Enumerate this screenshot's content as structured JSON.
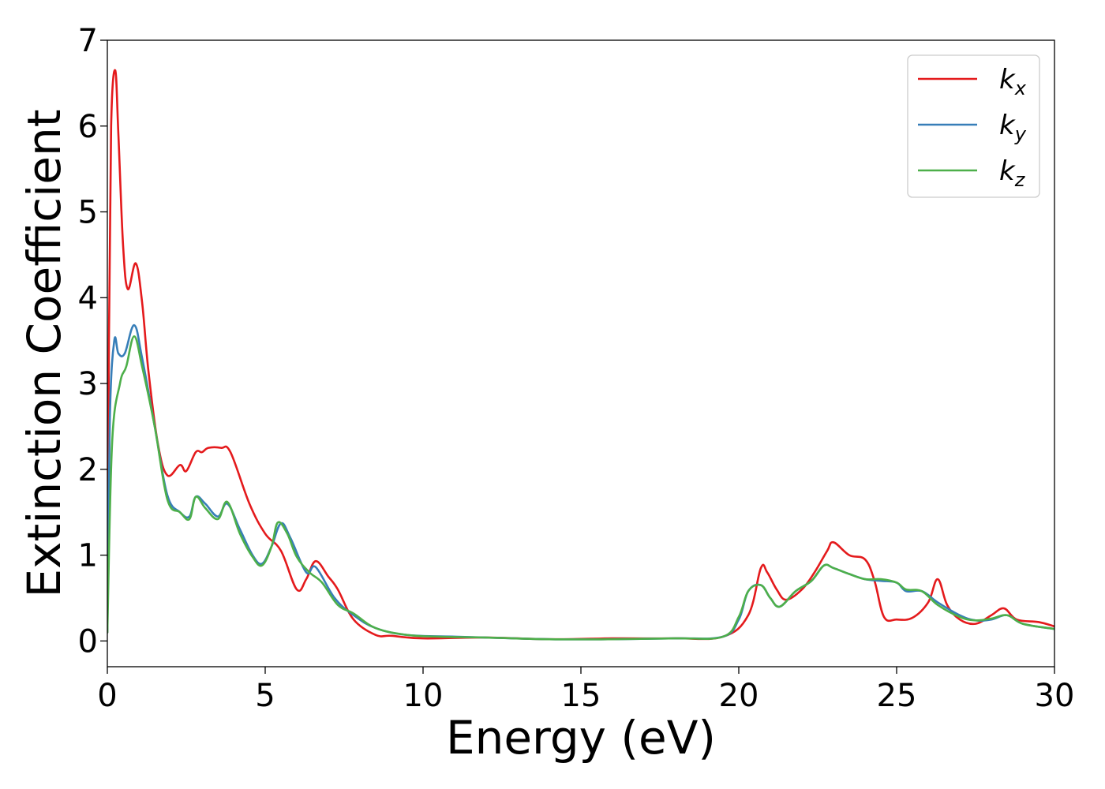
{
  "chart_data": {
    "type": "line",
    "title": "",
    "xlabel": "Energy (eV)",
    "ylabel": "Extinction Coefficient",
    "xlim": [
      0,
      30
    ],
    "ylim": [
      -0.3,
      7
    ],
    "xticks": [
      0,
      5,
      10,
      15,
      20,
      25,
      30
    ],
    "yticks": [
      0,
      1,
      2,
      3,
      4,
      5,
      6,
      7
    ],
    "grid": false,
    "legend_position": "top-right",
    "series": [
      {
        "name": "k_x",
        "legend_base": "k",
        "legend_sub": "x",
        "color": "#e41a1c",
        "points": [
          [
            0,
            0.1
          ],
          [
            0.05,
            3.5
          ],
          [
            0.12,
            6.0
          ],
          [
            0.25,
            6.65
          ],
          [
            0.35,
            5.9
          ],
          [
            0.5,
            4.6
          ],
          [
            0.65,
            4.1
          ],
          [
            0.9,
            4.4
          ],
          [
            1.1,
            3.95
          ],
          [
            1.3,
            3.15
          ],
          [
            1.6,
            2.3
          ],
          [
            1.9,
            1.93
          ],
          [
            2.3,
            2.05
          ],
          [
            2.5,
            1.98
          ],
          [
            2.8,
            2.2
          ],
          [
            3.0,
            2.2
          ],
          [
            3.2,
            2.25
          ],
          [
            3.6,
            2.25
          ],
          [
            3.9,
            2.2
          ],
          [
            4.5,
            1.6
          ],
          [
            5.0,
            1.25
          ],
          [
            5.5,
            1.05
          ],
          [
            6.0,
            0.6
          ],
          [
            6.3,
            0.72
          ],
          [
            6.6,
            0.93
          ],
          [
            7.0,
            0.75
          ],
          [
            7.3,
            0.6
          ],
          [
            7.8,
            0.25
          ],
          [
            8.5,
            0.07
          ],
          [
            9.0,
            0.06
          ],
          [
            10,
            0.03
          ],
          [
            12,
            0.04
          ],
          [
            14,
            0.02
          ],
          [
            16,
            0.03
          ],
          [
            18,
            0.03
          ],
          [
            19.5,
            0.05
          ],
          [
            20.3,
            0.3
          ],
          [
            20.7,
            0.85
          ],
          [
            20.9,
            0.8
          ],
          [
            21.2,
            0.6
          ],
          [
            21.5,
            0.48
          ],
          [
            22.0,
            0.6
          ],
          [
            22.4,
            0.8
          ],
          [
            22.8,
            1.05
          ],
          [
            23.0,
            1.15
          ],
          [
            23.5,
            1.0
          ],
          [
            24.0,
            0.95
          ],
          [
            24.3,
            0.7
          ],
          [
            24.6,
            0.28
          ],
          [
            25.0,
            0.25
          ],
          [
            25.5,
            0.27
          ],
          [
            26.0,
            0.45
          ],
          [
            26.3,
            0.72
          ],
          [
            26.6,
            0.42
          ],
          [
            27.0,
            0.25
          ],
          [
            27.5,
            0.2
          ],
          [
            28.0,
            0.3
          ],
          [
            28.4,
            0.38
          ],
          [
            28.8,
            0.25
          ],
          [
            29.5,
            0.22
          ],
          [
            30.0,
            0.17
          ]
        ]
      },
      {
        "name": "k_y",
        "legend_base": "k",
        "legend_sub": "y",
        "color": "#377eb8",
        "points": [
          [
            0,
            0.1
          ],
          [
            0.08,
            2.6
          ],
          [
            0.22,
            3.5
          ],
          [
            0.35,
            3.35
          ],
          [
            0.55,
            3.35
          ],
          [
            0.85,
            3.68
          ],
          [
            1.1,
            3.3
          ],
          [
            1.5,
            2.5
          ],
          [
            1.9,
            1.7
          ],
          [
            2.3,
            1.5
          ],
          [
            2.6,
            1.45
          ],
          [
            2.8,
            1.68
          ],
          [
            3.1,
            1.6
          ],
          [
            3.5,
            1.45
          ],
          [
            3.8,
            1.6
          ],
          [
            4.2,
            1.3
          ],
          [
            4.6,
            1.0
          ],
          [
            4.9,
            0.9
          ],
          [
            5.2,
            1.1
          ],
          [
            5.5,
            1.37
          ],
          [
            5.8,
            1.2
          ],
          [
            6.3,
            0.8
          ],
          [
            6.6,
            0.86
          ],
          [
            7.2,
            0.5
          ],
          [
            7.8,
            0.3
          ],
          [
            8.5,
            0.15
          ],
          [
            9.5,
            0.07
          ],
          [
            11,
            0.05
          ],
          [
            12,
            0.04
          ],
          [
            14,
            0.02
          ],
          [
            16,
            0.02
          ],
          [
            18,
            0.03
          ],
          [
            19.5,
            0.05
          ],
          [
            20.0,
            0.25
          ],
          [
            20.3,
            0.58
          ],
          [
            20.7,
            0.65
          ],
          [
            21.0,
            0.5
          ],
          [
            21.3,
            0.4
          ],
          [
            21.8,
            0.58
          ],
          [
            22.3,
            0.7
          ],
          [
            22.7,
            0.88
          ],
          [
            23.0,
            0.85
          ],
          [
            23.5,
            0.78
          ],
          [
            24.0,
            0.72
          ],
          [
            24.5,
            0.7
          ],
          [
            25.0,
            0.68
          ],
          [
            25.3,
            0.58
          ],
          [
            25.8,
            0.58
          ],
          [
            26.3,
            0.45
          ],
          [
            27.0,
            0.3
          ],
          [
            27.5,
            0.24
          ],
          [
            28.0,
            0.25
          ],
          [
            28.5,
            0.3
          ],
          [
            29.0,
            0.2
          ],
          [
            30.0,
            0.14
          ]
        ]
      },
      {
        "name": "k_z",
        "legend_base": "k",
        "legend_sub": "z",
        "color": "#4daf4a",
        "points": [
          [
            0,
            0.1
          ],
          [
            0.15,
            2.3
          ],
          [
            0.4,
            3.0
          ],
          [
            0.6,
            3.2
          ],
          [
            0.85,
            3.55
          ],
          [
            1.1,
            3.2
          ],
          [
            1.5,
            2.5
          ],
          [
            1.9,
            1.65
          ],
          [
            2.3,
            1.5
          ],
          [
            2.6,
            1.42
          ],
          [
            2.8,
            1.68
          ],
          [
            3.1,
            1.55
          ],
          [
            3.5,
            1.42
          ],
          [
            3.8,
            1.62
          ],
          [
            4.2,
            1.25
          ],
          [
            4.6,
            0.98
          ],
          [
            4.9,
            0.88
          ],
          [
            5.2,
            1.1
          ],
          [
            5.4,
            1.38
          ],
          [
            5.7,
            1.25
          ],
          [
            6.0,
            0.98
          ],
          [
            6.4,
            0.8
          ],
          [
            6.8,
            0.68
          ],
          [
            7.3,
            0.42
          ],
          [
            7.8,
            0.32
          ],
          [
            8.5,
            0.15
          ],
          [
            9.5,
            0.07
          ],
          [
            10.5,
            0.05
          ],
          [
            12,
            0.04
          ],
          [
            14,
            0.02
          ],
          [
            16,
            0.02
          ],
          [
            18,
            0.03
          ],
          [
            19.5,
            0.05
          ],
          [
            20.0,
            0.28
          ],
          [
            20.3,
            0.58
          ],
          [
            20.7,
            0.65
          ],
          [
            21.0,
            0.5
          ],
          [
            21.3,
            0.4
          ],
          [
            21.8,
            0.58
          ],
          [
            22.3,
            0.7
          ],
          [
            22.7,
            0.88
          ],
          [
            23.0,
            0.85
          ],
          [
            23.5,
            0.78
          ],
          [
            24.0,
            0.72
          ],
          [
            24.5,
            0.72
          ],
          [
            25.0,
            0.68
          ],
          [
            25.3,
            0.6
          ],
          [
            25.8,
            0.58
          ],
          [
            26.3,
            0.42
          ],
          [
            27.0,
            0.28
          ],
          [
            27.5,
            0.24
          ],
          [
            28.0,
            0.26
          ],
          [
            28.5,
            0.3
          ],
          [
            29.0,
            0.2
          ],
          [
            30.0,
            0.14
          ]
        ]
      }
    ]
  }
}
